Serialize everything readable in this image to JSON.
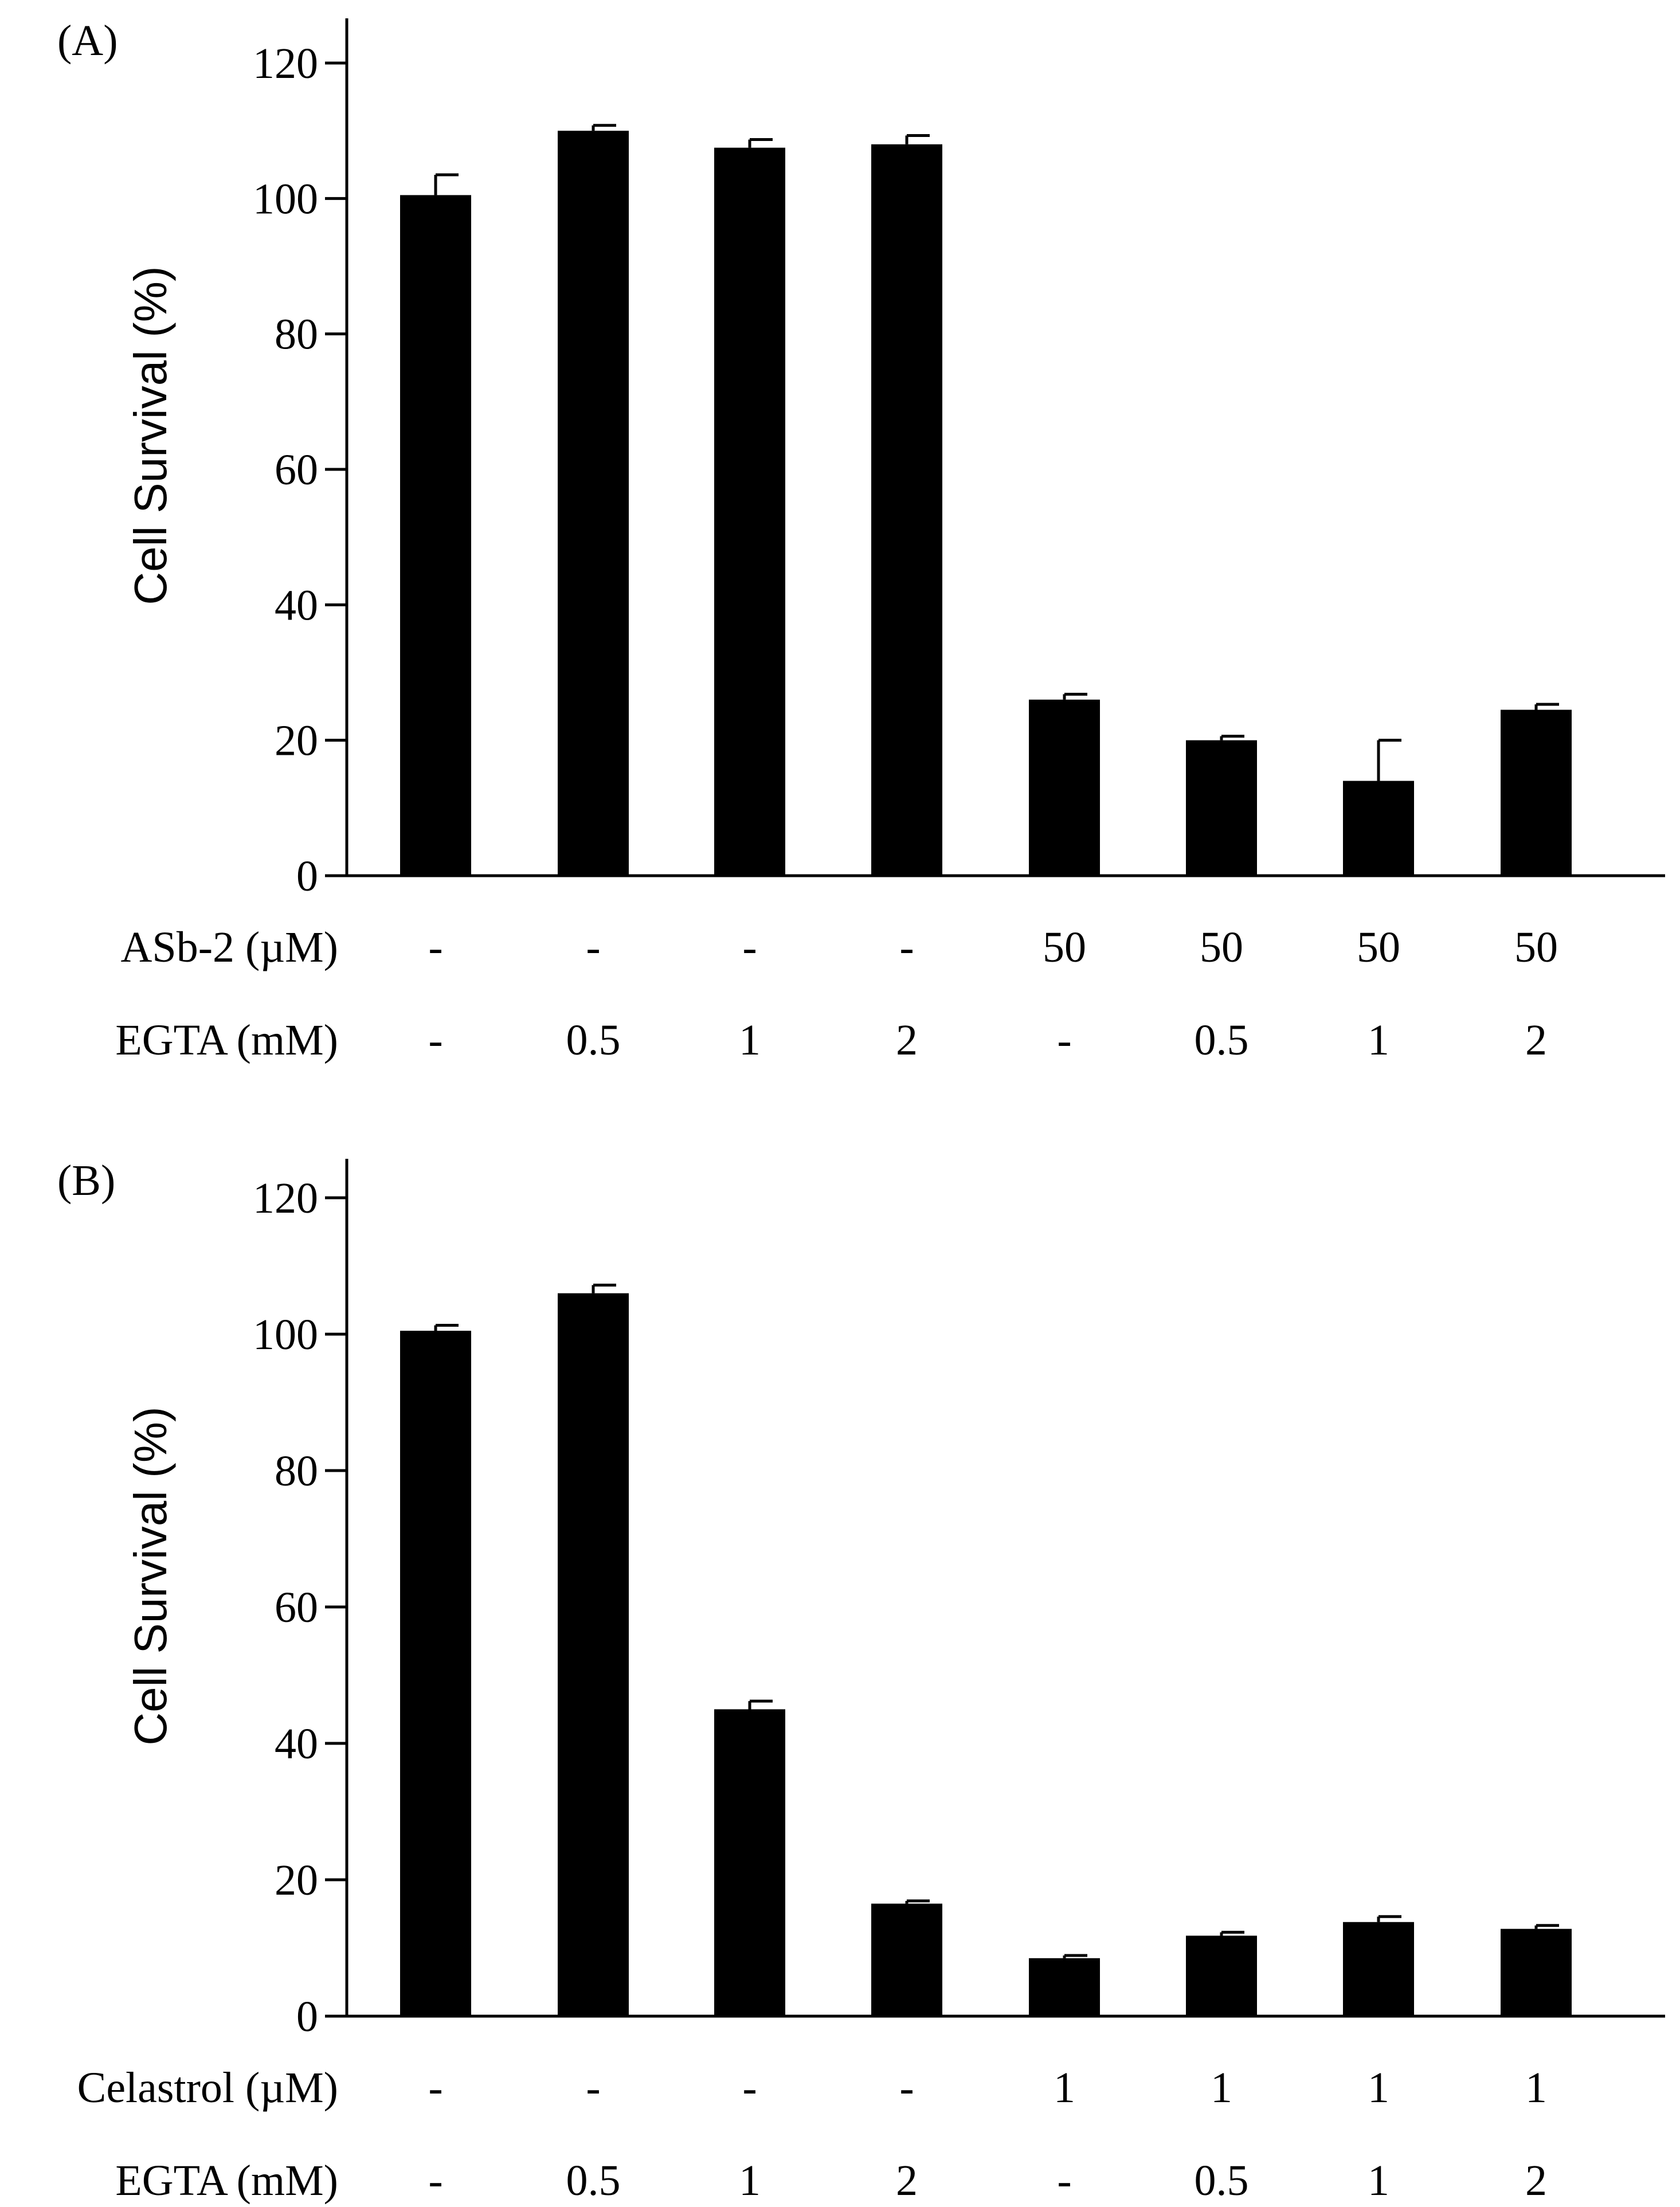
{
  "chart_data": [
    {
      "type": "bar",
      "panel_label": "(A)",
      "ylabel": "Cell Survival (%)",
      "ylim": [
        0,
        120
      ],
      "yticks": [
        0,
        20,
        40,
        60,
        80,
        100,
        120
      ],
      "values": [
        100.5,
        110,
        107.5,
        108,
        26,
        20,
        14,
        24.5
      ],
      "errors": [
        3,
        0.8,
        1.2,
        1.3,
        0.8,
        0.6,
        6,
        0.8
      ],
      "conditions": [
        {
          "label": "ASb-2 (µM)",
          "values": [
            "-",
            "-",
            "-",
            "-",
            "50",
            "50",
            "50",
            "50"
          ]
        },
        {
          "label": "EGTA (mM)",
          "values": [
            "-",
            "0.5",
            "1",
            "2",
            "-",
            "0.5",
            "1",
            "2"
          ]
        }
      ]
    },
    {
      "type": "bar",
      "panel_label": "(B)",
      "ylabel": "Cell Survival (%)",
      "ylim": [
        0,
        120
      ],
      "yticks": [
        0,
        20,
        40,
        60,
        80,
        100,
        120
      ],
      "values": [
        100.5,
        106,
        45,
        16.5,
        8.5,
        11.8,
        13.8,
        12.8
      ],
      "errors": [
        0.8,
        1.2,
        1.2,
        0.4,
        0.4,
        0.5,
        0.8,
        0.5
      ],
      "conditions": [
        {
          "label": "Celastrol (µM)",
          "values": [
            "-",
            "-",
            "-",
            "-",
            "1",
            "1",
            "1",
            "1"
          ]
        },
        {
          "label": "EGTA (mM)",
          "values": [
            "-",
            "0.5",
            "1",
            "2",
            "-",
            "0.5",
            "1",
            "2"
          ]
        }
      ]
    }
  ]
}
